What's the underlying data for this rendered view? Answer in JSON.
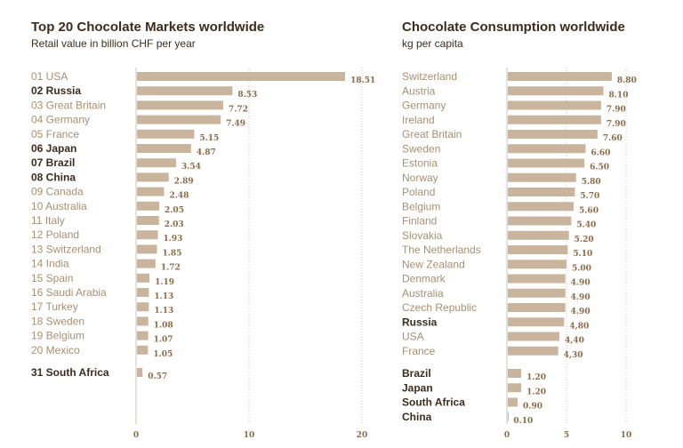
{
  "colors": {
    "bar": "#c9b49d",
    "label": "#a88f72",
    "highlight": "#3b2c1e",
    "value": "#8c6c48",
    "grid": "#cfc3b5"
  },
  "chart_data": [
    {
      "type": "bar",
      "orientation": "horizontal",
      "title": "Top 20 Chocolate Markets worldwide",
      "subtitle": "Retail value in billion CHF per year",
      "xlim": [
        0,
        20
      ],
      "xticks": [
        "0",
        "10",
        "20"
      ],
      "grid": "dotted vertical",
      "rows": [
        {
          "label": "01 USA",
          "value": 18.51,
          "text": "18.51",
          "bold": false
        },
        {
          "label": "02 Russia",
          "value": 8.53,
          "text": "8.53",
          "bold": true
        },
        {
          "label": "03 Great Britain",
          "value": 7.72,
          "text": "7.72",
          "bold": false
        },
        {
          "label": "04 Germany",
          "value": 7.49,
          "text": "7.49",
          "bold": false
        },
        {
          "label": "05 France",
          "value": 5.15,
          "text": "5.15",
          "bold": false
        },
        {
          "label": "06 Japan",
          "value": 4.87,
          "text": "4.87",
          "bold": true
        },
        {
          "label": "07 Brazil",
          "value": 3.54,
          "text": "3.54",
          "bold": true
        },
        {
          "label": "08 China",
          "value": 2.89,
          "text": "2.89",
          "bold": true
        },
        {
          "label": "09 Canada",
          "value": 2.48,
          "text": "2.48",
          "bold": false
        },
        {
          "label": "10 Australia",
          "value": 2.05,
          "text": "2.05",
          "bold": false
        },
        {
          "label": "11 Italy",
          "value": 2.03,
          "text": "2.03",
          "bold": false
        },
        {
          "label": "12 Poland",
          "value": 1.93,
          "text": "1.93",
          "bold": false
        },
        {
          "label": "13 Switzerland",
          "value": 1.85,
          "text": "1.85",
          "bold": false
        },
        {
          "label": "14 India",
          "value": 1.72,
          "text": "1.72",
          "bold": false
        },
        {
          "label": "15 Spain",
          "value": 1.19,
          "text": "1.19",
          "bold": false
        },
        {
          "label": "16 Saudi Arabia",
          "value": 1.13,
          "text": "1.13",
          "bold": false
        },
        {
          "label": "17 Turkey",
          "value": 1.13,
          "text": "1.13",
          "bold": false
        },
        {
          "label": "18 Sweden",
          "value": 1.08,
          "text": "1.08",
          "bold": false
        },
        {
          "label": "19 Belgium",
          "value": 1.07,
          "text": "1.07",
          "bold": false
        },
        {
          "label": "20 Mexico",
          "value": 1.05,
          "text": "1.05",
          "bold": false
        },
        {
          "label": "31 South Africa",
          "value": 0.57,
          "text": "0.57",
          "bold": true,
          "gap": true
        }
      ]
    },
    {
      "type": "bar",
      "orientation": "horizontal",
      "title": "Chocolate Consumption worldwide",
      "subtitle": "kg per capita",
      "xlim": [
        0,
        10
      ],
      "xticks": [
        "0",
        "5",
        "10"
      ],
      "grid": "dotted vertical",
      "rows": [
        {
          "label": "Switzerland",
          "value": 8.8,
          "text": "8.80",
          "bold": false
        },
        {
          "label": "Austria",
          "value": 8.1,
          "text": "8.10",
          "bold": false
        },
        {
          "label": "Germany",
          "value": 7.9,
          "text": "7.90",
          "bold": false
        },
        {
          "label": "Ireland",
          "value": 7.9,
          "text": "7.90",
          "bold": false
        },
        {
          "label": "Great Britain",
          "value": 7.6,
          "text": "7.60",
          "bold": false
        },
        {
          "label": "Sweden",
          "value": 6.6,
          "text": "6.60",
          "bold": false
        },
        {
          "label": "Estonia",
          "value": 6.5,
          "text": "6.50",
          "bold": false
        },
        {
          "label": "Norway",
          "value": 5.8,
          "text": "5.80",
          "bold": false
        },
        {
          "label": "Poland",
          "value": 5.7,
          "text": "5.70",
          "bold": false
        },
        {
          "label": "Belgium",
          "value": 5.6,
          "text": "5.60",
          "bold": false
        },
        {
          "label": "Finland",
          "value": 5.4,
          "text": "5.40",
          "bold": false
        },
        {
          "label": "Slovakia",
          "value": 5.2,
          "text": "5.20",
          "bold": false
        },
        {
          "label": "The Netherlands",
          "value": 5.1,
          "text": "5.10",
          "bold": false
        },
        {
          "label": "New Zealand",
          "value": 5.0,
          "text": "5.00",
          "bold": false
        },
        {
          "label": "Denmark",
          "value": 4.9,
          "text": "4.90",
          "bold": false
        },
        {
          "label": "Australia",
          "value": 4.9,
          "text": "4.90",
          "bold": false
        },
        {
          "label": "Czech Republic",
          "value": 4.9,
          "text": "4.90",
          "bold": false
        },
        {
          "label": "Russia",
          "value": 4.8,
          "text": "4,80",
          "bold": true
        },
        {
          "label": "USA",
          "value": 4.4,
          "text": "4,40",
          "bold": false
        },
        {
          "label": "France",
          "value": 4.3,
          "text": "4,30",
          "bold": false
        },
        {
          "label": "Brazil",
          "value": 1.2,
          "text": "1.20",
          "bold": true,
          "gap": true
        },
        {
          "label": "Japan",
          "value": 1.2,
          "text": "1.20",
          "bold": true
        },
        {
          "label": "South Africa",
          "value": 0.9,
          "text": "0.90",
          "bold": true
        },
        {
          "label": "China",
          "value": 0.1,
          "text": "0.10",
          "bold": true
        }
      ]
    }
  ]
}
